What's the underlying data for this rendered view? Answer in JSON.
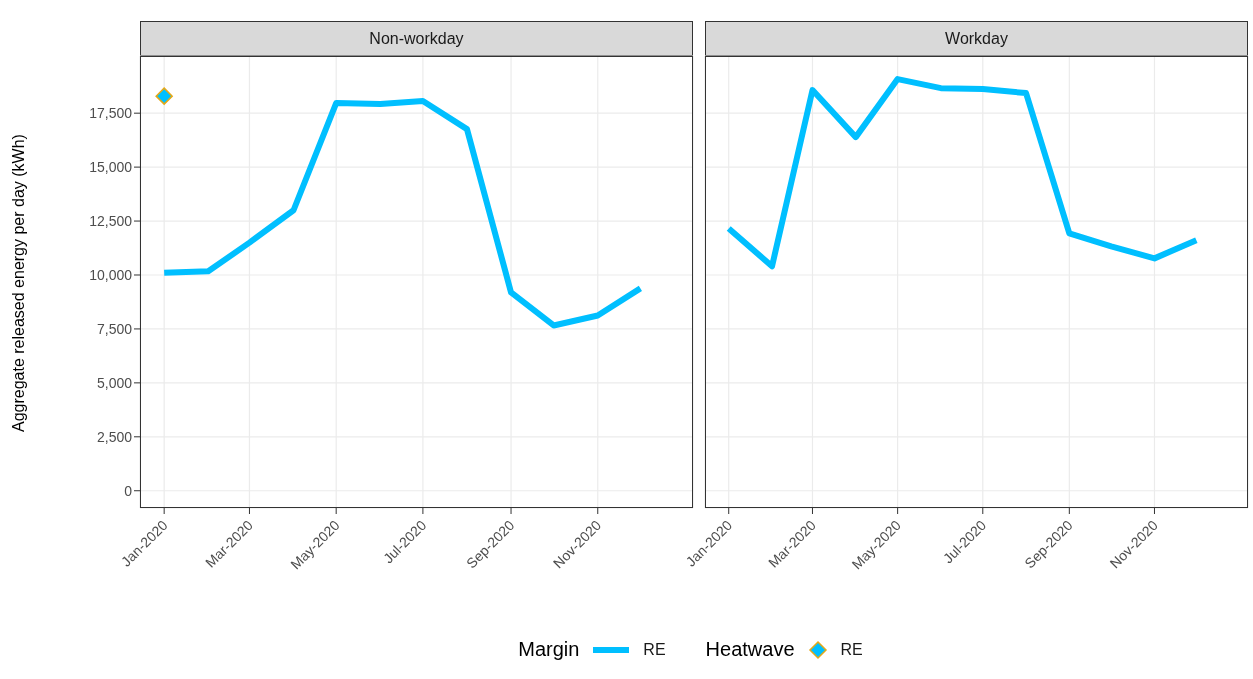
{
  "chart_data": [
    {
      "type": "line",
      "title": "Non-workday",
      "ylabel": "Aggregate released energy per day (kWh)",
      "legend_title": "Margin",
      "legend": "bottom",
      "grid": true,
      "x": [
        "2020-01",
        "2020-02",
        "2020-03",
        "2020-04",
        "2020-05",
        "2020-06",
        "2020-07",
        "2020-08",
        "2020-09",
        "2020-10",
        "2020-11",
        "2020-12"
      ],
      "series": [
        {
          "name": "RE",
          "color": "#00bfff",
          "values": [
            10100,
            10170,
            11500,
            13000,
            17970,
            17920,
            18060,
            16760,
            9190,
            7660,
            8120,
            9380
          ]
        },
        {
          "name": "RE",
          "type": "scatter",
          "marker": "diamond",
          "color": "#00bfff",
          "x": [
            "2020-01"
          ],
          "values": [
            18290
          ]
        }
      ],
      "xlim": [
        "2019-12-15",
        "2021-01-07"
      ],
      "ylim": [
        -800,
        20150
      ],
      "xticks": [
        {
          "value": "2020-01",
          "label": "Jan-2020"
        },
        {
          "value": "2020-03",
          "label": "Mar-2020"
        },
        {
          "value": "2020-05",
          "label": "May-2020"
        },
        {
          "value": "2020-07",
          "label": "Jul-2020"
        },
        {
          "value": "2020-09",
          "label": "Sep-2020"
        },
        {
          "value": "2020-11",
          "label": "Nov-2020"
        }
      ],
      "yticks": [
        0,
        {
          "value": 2500,
          "label": "2,500"
        },
        {
          "value": 5000,
          "label": "5,000"
        },
        {
          "value": 7500,
          "label": "7,500"
        },
        {
          "value": 10000,
          "label": "10,000"
        },
        {
          "value": 12500,
          "label": "12,500"
        },
        {
          "value": 15000,
          "label": "15,000"
        },
        {
          "value": 17500,
          "label": "17,500"
        }
      ]
    },
    {
      "type": "line",
      "title": "Workday",
      "legend_title": "Heatwave",
      "legend": "bottom",
      "grid": true,
      "tick_labels": "x",
      "x": [
        "2020-01",
        "2020-02",
        "2020-03",
        "2020-04",
        "2020-05",
        "2020-06",
        "2020-07",
        "2020-08",
        "2020-09",
        "2020-10",
        "2020-11",
        "2020-12"
      ],
      "series": [
        {
          "name": "RE",
          "color": "#00bfff",
          "values": [
            12160,
            10400,
            18570,
            16390,
            19080,
            18660,
            18620,
            18430,
            11930,
            11330,
            10770,
            11610
          ]
        }
      ],
      "xlim": [
        "2019-12-15",
        "2021-01-07"
      ],
      "ylim": [
        -800,
        20150
      ],
      "xticks": [
        {
          "value": "2020-01",
          "label": "Jan-2020"
        },
        {
          "value": "2020-03",
          "label": "Mar-2020"
        },
        {
          "value": "2020-05",
          "label": "May-2020"
        },
        {
          "value": "2020-07",
          "label": "Jul-2020"
        },
        {
          "value": "2020-09",
          "label": "Sep-2020"
        },
        {
          "value": "2020-11",
          "label": "Nov-2020"
        }
      ],
      "yticks": [
        0,
        2500,
        5000,
        7500,
        10000,
        12500,
        15000,
        17500
      ]
    }
  ]
}
